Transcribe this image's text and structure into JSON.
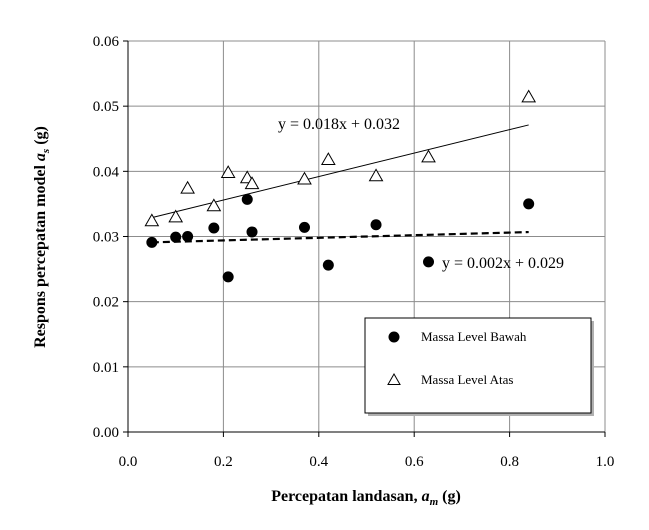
{
  "chart_data": {
    "type": "scatter",
    "xlabel": "Percepatan landasan, a_m (g)",
    "ylabel": "Respons percepatan model a_s (g)",
    "xlim": [
      0.0,
      1.0
    ],
    "ylim": [
      0.0,
      0.06
    ],
    "x_ticks": [
      "0.0",
      "0.2",
      "0.4",
      "0.6",
      "0.8",
      "1.0"
    ],
    "y_ticks": [
      "0.00",
      "0.01",
      "0.02",
      "0.03",
      "0.04",
      "0.05",
      "0.06"
    ],
    "x_tick_values": [
      0.0,
      0.2,
      0.4,
      0.6,
      0.8,
      1.0
    ],
    "y_tick_values": [
      0.0,
      0.01,
      0.02,
      0.03,
      0.04,
      0.05,
      0.06
    ],
    "grid": true,
    "legend_position": "bottom-right",
    "series": [
      {
        "name": "Massa Level Bawah",
        "marker": "filled-circle",
        "color": "#000000",
        "points": [
          {
            "x": 0.05,
            "y": 0.0291
          },
          {
            "x": 0.1,
            "y": 0.0299
          },
          {
            "x": 0.125,
            "y": 0.03
          },
          {
            "x": 0.18,
            "y": 0.0313
          },
          {
            "x": 0.21,
            "y": 0.0238
          },
          {
            "x": 0.25,
            "y": 0.0357
          },
          {
            "x": 0.26,
            "y": 0.0307
          },
          {
            "x": 0.37,
            "y": 0.0314
          },
          {
            "x": 0.42,
            "y": 0.0256
          },
          {
            "x": 0.52,
            "y": 0.0318
          },
          {
            "x": 0.63,
            "y": 0.0261
          },
          {
            "x": 0.84,
            "y": 0.035
          }
        ],
        "trendline": {
          "slope": 0.002,
          "intercept": 0.029,
          "x_range": [
            0.05,
            0.84
          ],
          "style": "dashed",
          "equation": "y = 0.002x + 0.029"
        }
      },
      {
        "name": "Massa Level Atas",
        "marker": "hollow-triangle",
        "color": "#000000",
        "points": [
          {
            "x": 0.05,
            "y": 0.0324
          },
          {
            "x": 0.1,
            "y": 0.033
          },
          {
            "x": 0.125,
            "y": 0.0374
          },
          {
            "x": 0.18,
            "y": 0.0347
          },
          {
            "x": 0.21,
            "y": 0.0398
          },
          {
            "x": 0.25,
            "y": 0.039
          },
          {
            "x": 0.26,
            "y": 0.0381
          },
          {
            "x": 0.37,
            "y": 0.0388
          },
          {
            "x": 0.42,
            "y": 0.0418
          },
          {
            "x": 0.52,
            "y": 0.0393
          },
          {
            "x": 0.63,
            "y": 0.0422
          },
          {
            "x": 0.84,
            "y": 0.0514
          }
        ],
        "trendline": {
          "slope": 0.018,
          "intercept": 0.032,
          "x_range": [
            0.05,
            0.84
          ],
          "style": "solid",
          "equation": "y = 0.018x + 0.032"
        }
      }
    ]
  }
}
